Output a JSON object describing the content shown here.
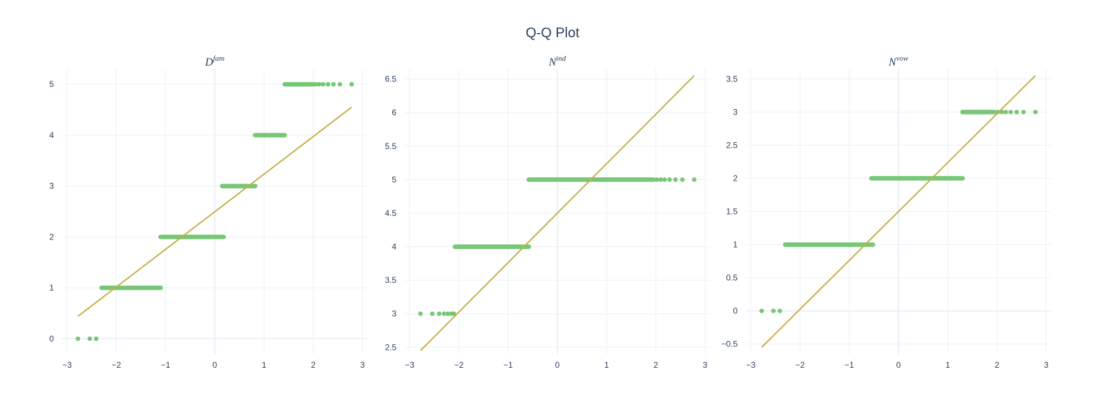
{
  "chart_data": [
    {
      "type": "scatter",
      "title": "Q-Q Plot",
      "subplot_title_base": "D",
      "subplot_title_sup": "fam",
      "xlim": [
        -3.1,
        3.1
      ],
      "ylim": [
        -0.3,
        5.3
      ],
      "xticks": [
        -3,
        -2,
        -1,
        0,
        1,
        2,
        3
      ],
      "xtick_labels": [
        "−3",
        "−2",
        "−1",
        "0",
        "1",
        "2",
        "3"
      ],
      "yticks": [
        0,
        1,
        2,
        3,
        4,
        5
      ],
      "ytick_labels": [
        "0",
        "1",
        "2",
        "3",
        "4",
        "5"
      ],
      "series": [
        {
          "mode": "markers",
          "color": "#77c777",
          "groups": [
            {
              "y": 0,
              "x": [
                -2.78,
                -2.54,
                -2.41
              ]
            },
            {
              "y": 1,
              "x_from": -2.3,
              "x_to": -1.1,
              "n": 60
            },
            {
              "y": 2,
              "x_from": -1.1,
              "x_to": 0.18,
              "n": 70
            },
            {
              "y": 3,
              "x_from": 0.15,
              "x_to": 0.82,
              "n": 40
            },
            {
              "y": 4,
              "x_from": 0.82,
              "x_to": 1.42,
              "n": 35
            },
            {
              "y": 5,
              "x_from": 1.42,
              "x_to": 2.0,
              "n": 40,
              "tail": [
                2.05,
                2.12,
                2.2,
                2.3,
                2.41,
                2.54,
                2.78
              ]
            }
          ]
        },
        {
          "mode": "lines",
          "color": "#c5b04a",
          "x": [
            -2.78,
            2.78
          ],
          "y": [
            0.44,
            4.55
          ]
        }
      ]
    },
    {
      "type": "scatter",
      "subplot_title_base": "N",
      "subplot_title_sup": "ind",
      "xlim": [
        -3.1,
        3.1
      ],
      "ylim": [
        2.4,
        6.65
      ],
      "xticks": [
        -3,
        -2,
        -1,
        0,
        1,
        2,
        3
      ],
      "xtick_labels": [
        "−3",
        "−2",
        "−1",
        "0",
        "1",
        "2",
        "3"
      ],
      "yticks": [
        2.5,
        3,
        3.5,
        4,
        4.5,
        5,
        5.5,
        6,
        6.5
      ],
      "ytick_labels": [
        "2.5",
        "3",
        "3.5",
        "4",
        "4.5",
        "5",
        "5.5",
        "6",
        "6.5"
      ],
      "series": [
        {
          "mode": "markers",
          "color": "#77c777",
          "groups": [
            {
              "y": 3,
              "x": [
                -2.78,
                -2.54,
                -2.4,
                -2.3,
                -2.22,
                -2.15,
                -2.1
              ]
            },
            {
              "y": 4,
              "x_from": -2.08,
              "x_to": -0.58,
              "n": 80
            },
            {
              "y": 5,
              "x_from": -0.58,
              "x_to": 1.95,
              "n": 120,
              "tail": [
                2.02,
                2.1,
                2.18,
                2.28,
                2.4,
                2.54,
                2.78
              ]
            }
          ]
        },
        {
          "mode": "lines",
          "color": "#c5b04a",
          "x": [
            -2.78,
            2.78
          ],
          "y": [
            2.45,
            6.55
          ]
        }
      ]
    },
    {
      "type": "scatter",
      "subplot_title_base": "N",
      "subplot_title_sup": "vow",
      "xlim": [
        -3.1,
        3.1
      ],
      "ylim": [
        -0.65,
        3.65
      ],
      "xticks": [
        -3,
        -2,
        -1,
        0,
        1,
        2,
        3
      ],
      "xtick_labels": [
        "−3",
        "−2",
        "−1",
        "0",
        "1",
        "2",
        "3"
      ],
      "yticks": [
        -0.5,
        0,
        0.5,
        1,
        1.5,
        2,
        2.5,
        3,
        3.5
      ],
      "ytick_labels": [
        "−0.5",
        "0",
        "0.5",
        "1",
        "1.5",
        "2",
        "2.5",
        "3",
        "3.5"
      ],
      "series": [
        {
          "mode": "markers",
          "color": "#77c777",
          "groups": [
            {
              "y": 0,
              "x": [
                -2.78,
                -2.54,
                -2.41
              ]
            },
            {
              "y": 1,
              "x_from": -2.3,
              "x_to": -0.52,
              "n": 80
            },
            {
              "y": 2,
              "x_from": -0.55,
              "x_to": 1.3,
              "n": 80
            },
            {
              "y": 3,
              "x_from": 1.3,
              "x_to": 1.95,
              "n": 40,
              "tail": [
                2.02,
                2.1,
                2.18,
                2.28,
                2.4,
                2.54,
                2.78
              ]
            }
          ]
        },
        {
          "mode": "lines",
          "color": "#c5b04a",
          "x": [
            -2.78,
            2.78
          ],
          "y": [
            -0.55,
            3.55
          ]
        }
      ]
    }
  ]
}
